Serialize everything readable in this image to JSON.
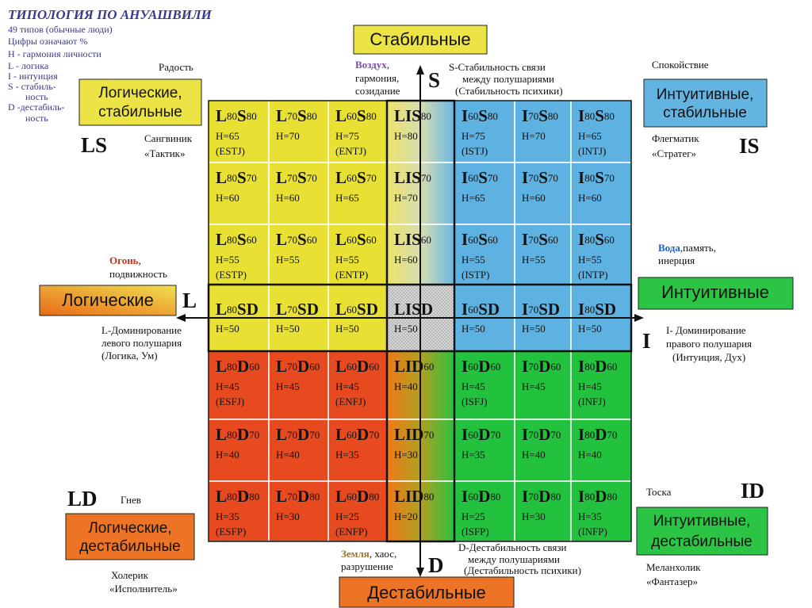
{
  "legend": {
    "title": "ТИПОЛОГИЯ ПО АНУАШВИЛИ",
    "lines": [
      "49 типов (обычные люди)",
      "Цифры означают %",
      "H - гармония личности",
      "L - логика",
      "I -  интуиция",
      "S - стабиль-",
      "ность",
      "D -дестабиль-",
      "ность"
    ]
  },
  "boxes": {
    "stable": "Стабильные",
    "destable": "Дестабильные",
    "logical": "Логические",
    "intuitive": "Интуитивные",
    "ls": [
      "Логические,",
      "стабильные"
    ],
    "is": [
      "Интуитивные,",
      "стабильные"
    ],
    "ld": [
      "Логические,",
      "дестабильные"
    ],
    "id": [
      "Интуитивные,",
      "дестабильные"
    ]
  },
  "corners": {
    "ls": {
      "code": "LS",
      "emotion": "Радость",
      "temperament": "Сангвиник",
      "role": "«Тактик»"
    },
    "is": {
      "code": "IS",
      "emotion": "Спокойствие",
      "temperament": "Флегматик",
      "role": "«Стратег»"
    },
    "ld": {
      "code": "LD",
      "emotion": "Гнев",
      "temperament": "Холерик",
      "role": "«Исполнитель»"
    },
    "id": {
      "code": "ID",
      "emotion": "Тоска",
      "temperament": "Меланхолик",
      "role": "«Фантазер»"
    }
  },
  "axes": {
    "s": {
      "letter": "S",
      "lines": [
        "S-Стабильность связи",
        "между полушариями",
        "(Стабильность психики)"
      ],
      "element": "Воздух",
      "element_rest": ",",
      "element_lines": [
        "гармония,",
        "созидание"
      ]
    },
    "d": {
      "letter": "D",
      "lines": [
        "D-Дестабильность связи",
        "между полушариями",
        "(Дестабильность психики)"
      ],
      "element": "Земля",
      "element_rest": ", хаос,",
      "element_lines": [
        "разрушение"
      ]
    },
    "l": {
      "letter": "L",
      "lines": [
        "L-Доминирование",
        "левого полушария",
        "(Логика, Ум)"
      ],
      "element": "Огонь",
      "element_rest": ",",
      "element_lines": [
        "подвижность"
      ]
    },
    "i": {
      "letter": "I",
      "lines": [
        "I- Доминирование",
        "правого полушария",
        "(Интуиция, Дух)"
      ],
      "element": "Вода",
      "element_rest": ",память,",
      "element_lines": [
        "инерция"
      ]
    }
  },
  "grid": {
    "rows": [
      [
        {
          "code": [
            "L",
            "80",
            "S",
            "80"
          ],
          "h": "H=65",
          "type": "(ESTJ)"
        },
        {
          "code": [
            "L",
            "70",
            "S",
            "80"
          ],
          "h": "H=70"
        },
        {
          "code": [
            "L",
            "60",
            "S",
            "80"
          ],
          "h": "H=75",
          "type": "(ENTJ)"
        },
        {
          "code": [
            "LIS",
            "80"
          ],
          "h": "H=80"
        },
        {
          "code": [
            "I",
            "60",
            "S",
            "80"
          ],
          "h": "H=75",
          "type": "(ISTJ)"
        },
        {
          "code": [
            "I",
            "70",
            "S",
            "80"
          ],
          "h": "H=70"
        },
        {
          "code": [
            "I",
            "80",
            "S",
            "80"
          ],
          "h": "H=65",
          "type": "(INTJ)"
        }
      ],
      [
        {
          "code": [
            "L",
            "80",
            "S",
            "70"
          ],
          "h": "H=60"
        },
        {
          "code": [
            "L",
            "70",
            "S",
            "70"
          ],
          "h": "H=60"
        },
        {
          "code": [
            "L",
            "60",
            "S",
            "70"
          ],
          "h": "H=65"
        },
        {
          "code": [
            "LIS",
            "70"
          ],
          "h": "H=70"
        },
        {
          "code": [
            "I",
            "60",
            "S",
            "70"
          ],
          "h": "H=65"
        },
        {
          "code": [
            "I",
            "70",
            "S",
            "70"
          ],
          "h": "H=60"
        },
        {
          "code": [
            "I",
            "80",
            "S",
            "70"
          ],
          "h": "H=60"
        }
      ],
      [
        {
          "code": [
            "L",
            "80",
            "S",
            "60"
          ],
          "h": "H=55",
          "type": "(ESTP)"
        },
        {
          "code": [
            "L",
            "70",
            "S",
            "60"
          ],
          "h": "H=55"
        },
        {
          "code": [
            "L",
            "60",
            "S",
            "60"
          ],
          "h": "H=55",
          "type": "(ENTP)"
        },
        {
          "code": [
            "LIS",
            "60"
          ],
          "h": "H=60"
        },
        {
          "code": [
            "I",
            "60",
            "S",
            "60"
          ],
          "h": "H=55",
          "type": "(ISTP)"
        },
        {
          "code": [
            "I",
            "70",
            "S",
            "60"
          ],
          "h": "H=55"
        },
        {
          "code": [
            "I",
            "80",
            "S",
            "60"
          ],
          "h": "H=55",
          "type": "(INTP)"
        }
      ],
      [
        {
          "code": [
            "L",
            "80",
            "SD"
          ],
          "h": "H=50"
        },
        {
          "code": [
            "L",
            "70",
            "SD"
          ],
          "h": "H=50"
        },
        {
          "code": [
            "L",
            "60",
            "SD"
          ],
          "h": "H=50"
        },
        {
          "code": [
            "LISD"
          ],
          "h": "H=50"
        },
        {
          "code": [
            "I",
            "60",
            "SD"
          ],
          "h": "H=50"
        },
        {
          "code": [
            "I",
            "70",
            "SD"
          ],
          "h": "H=50"
        },
        {
          "code": [
            "I",
            "80",
            "SD"
          ],
          "h": "H=50"
        }
      ],
      [
        {
          "code": [
            "L",
            "80",
            "D",
            "60"
          ],
          "h": "H=45",
          "type": "(ESFJ)"
        },
        {
          "code": [
            "L",
            "70",
            "D",
            "60"
          ],
          "h": "H=45"
        },
        {
          "code": [
            "L",
            "60",
            "D",
            "60"
          ],
          "h": "H=45",
          "type": "(ENFJ)"
        },
        {
          "code": [
            "LID",
            "60"
          ],
          "h": "H=40"
        },
        {
          "code": [
            "I",
            "60",
            "D",
            "60"
          ],
          "h": "H=45",
          "type": "(ISFJ)"
        },
        {
          "code": [
            "I",
            "70",
            "D",
            "60"
          ],
          "h": "H=45"
        },
        {
          "code": [
            "I",
            "80",
            "D",
            "60"
          ],
          "h": "H=45",
          "type": "(INFJ)"
        }
      ],
      [
        {
          "code": [
            "L",
            "80",
            "D",
            "70"
          ],
          "h": "H=40"
        },
        {
          "code": [
            "L",
            "70",
            "D",
            "70"
          ],
          "h": "H=40"
        },
        {
          "code": [
            "L",
            "60",
            "D",
            "70"
          ],
          "h": "H=35"
        },
        {
          "code": [
            "LID",
            "70"
          ],
          "h": "H=30"
        },
        {
          "code": [
            "I",
            "60",
            "D",
            "70"
          ],
          "h": "H=35"
        },
        {
          "code": [
            "I",
            "70",
            "D",
            "70"
          ],
          "h": "H=40"
        },
        {
          "code": [
            "I",
            "80",
            "D",
            "70"
          ],
          "h": "H=40"
        }
      ],
      [
        {
          "code": [
            "L",
            "80",
            "D",
            "80"
          ],
          "h": "H=35",
          "type": "(ESFP)"
        },
        {
          "code": [
            "L",
            "70",
            "D",
            "80"
          ],
          "h": "H=30"
        },
        {
          "code": [
            "L",
            "60",
            "D",
            "80"
          ],
          "h": "H=25",
          "type": "(ENFP)"
        },
        {
          "code": [
            "LID",
            "80"
          ],
          "h": "H=20"
        },
        {
          "code": [
            "I",
            "60",
            "D",
            "80"
          ],
          "h": "H=25",
          "type": "(ISFP)"
        },
        {
          "code": [
            "I",
            "70",
            "D",
            "80"
          ],
          "h": "H=30"
        },
        {
          "code": [
            "I",
            "80",
            "D",
            "80"
          ],
          "h": "H=35",
          "type": "(INFP)"
        }
      ]
    ]
  }
}
